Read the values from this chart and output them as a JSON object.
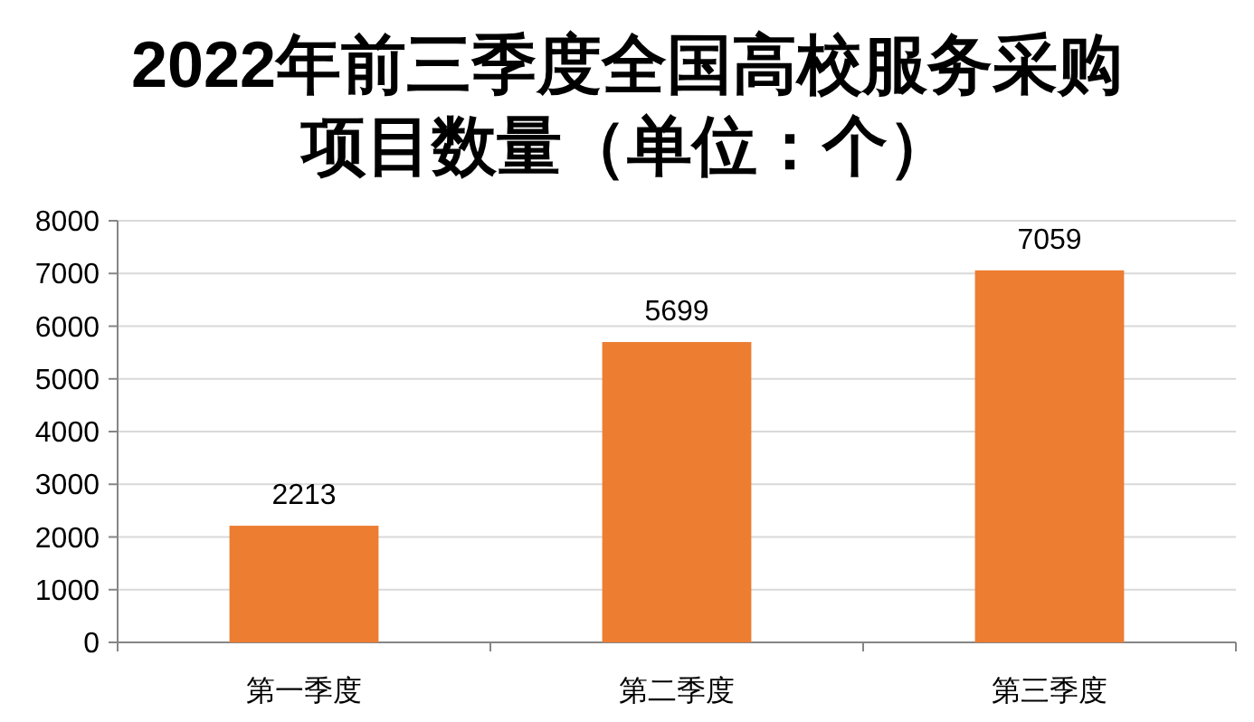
{
  "chart_data": {
    "type": "bar",
    "title": "2022年前三季度全国高校服务采购项目数量（单位：个）",
    "categories": [
      "第一季度",
      "第二季度",
      "第三季度"
    ],
    "values": [
      2213,
      5699,
      7059
    ],
    "color": "#ed7d31",
    "data_labels": true,
    "ylim": [
      0,
      8000
    ],
    "yticks": [
      0,
      1000,
      2000,
      3000,
      4000,
      5000,
      6000,
      7000,
      8000
    ],
    "grid": "y"
  }
}
